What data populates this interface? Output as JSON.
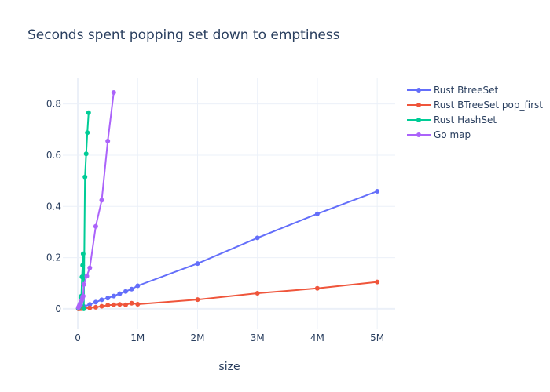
{
  "chart_data": {
    "type": "line",
    "title": "Seconds spent popping set down to emptiness",
    "xlabel": "size",
    "ylabel": "",
    "xlim": [
      -250000,
      5300000
    ],
    "ylim": [
      -0.08,
      0.9
    ],
    "x_ticks": [
      {
        "value": 0,
        "label": "0"
      },
      {
        "value": 1000000,
        "label": "1M"
      },
      {
        "value": 2000000,
        "label": "2M"
      },
      {
        "value": 3000000,
        "label": "3M"
      },
      {
        "value": 4000000,
        "label": "4M"
      },
      {
        "value": 5000000,
        "label": "5M"
      }
    ],
    "y_ticks": [
      {
        "value": 0,
        "label": "0"
      },
      {
        "value": 0.2,
        "label": "0.2"
      },
      {
        "value": 0.4,
        "label": "0.4"
      },
      {
        "value": 0.6,
        "label": "0.6"
      },
      {
        "value": 0.8,
        "label": "0.8"
      }
    ],
    "grid": true,
    "legend_position": "top-right",
    "series": [
      {
        "name": "Rust BtreeSet",
        "color": "#636efa",
        "x": [
          10000,
          20000,
          30000,
          40000,
          50000,
          60000,
          70000,
          80000,
          90000,
          100000,
          200000,
          300000,
          400000,
          500000,
          600000,
          700000,
          800000,
          900000,
          1000000,
          2000000,
          3000000,
          4000000,
          5000000
        ],
        "y": [
          0.001,
          0.002,
          0.003,
          0.004,
          0.004,
          0.005,
          0.006,
          0.007,
          0.008,
          0.009,
          0.017,
          0.026,
          0.035,
          0.042,
          0.05,
          0.059,
          0.068,
          0.077,
          0.09,
          0.177,
          0.277,
          0.371,
          0.459
        ]
      },
      {
        "name": "Rust BTreeSet pop_first",
        "color": "#ef553b",
        "x": [
          10000,
          20000,
          30000,
          40000,
          50000,
          60000,
          70000,
          80000,
          90000,
          100000,
          200000,
          300000,
          400000,
          500000,
          600000,
          700000,
          800000,
          900000,
          1000000,
          2000000,
          3000000,
          4000000,
          5000000
        ],
        "y": [
          0.0,
          0.0,
          0.001,
          0.001,
          0.001,
          0.001,
          0.002,
          0.002,
          0.002,
          0.002,
          0.004,
          0.006,
          0.01,
          0.014,
          0.016,
          0.017,
          0.016,
          0.022,
          0.018,
          0.036,
          0.061,
          0.08,
          0.105
        ]
      },
      {
        "name": "Rust HashSet",
        "color": "#00cc96",
        "x": [
          10000,
          20000,
          30000,
          40000,
          50000,
          60000,
          70000,
          80000,
          90000,
          100000,
          120000,
          140000,
          160000,
          180000
        ],
        "y": [
          0.002,
          0.005,
          0.01,
          0.02,
          0.045,
          0.05,
          0.125,
          0.17,
          0.215,
          0.0,
          0.515,
          0.605,
          0.688,
          0.766
        ]
      },
      {
        "name": "Go map",
        "color": "#ab63fa",
        "x": [
          10000,
          20000,
          30000,
          40000,
          50000,
          60000,
          70000,
          80000,
          90000,
          100000,
          150000,
          200000,
          300000,
          400000,
          500000,
          600000
        ],
        "y": [
          0.005,
          0.01,
          0.015,
          0.02,
          0.025,
          0.03,
          0.035,
          0.045,
          0.05,
          0.095,
          0.128,
          0.16,
          0.322,
          0.424,
          0.655,
          0.845
        ]
      }
    ]
  }
}
